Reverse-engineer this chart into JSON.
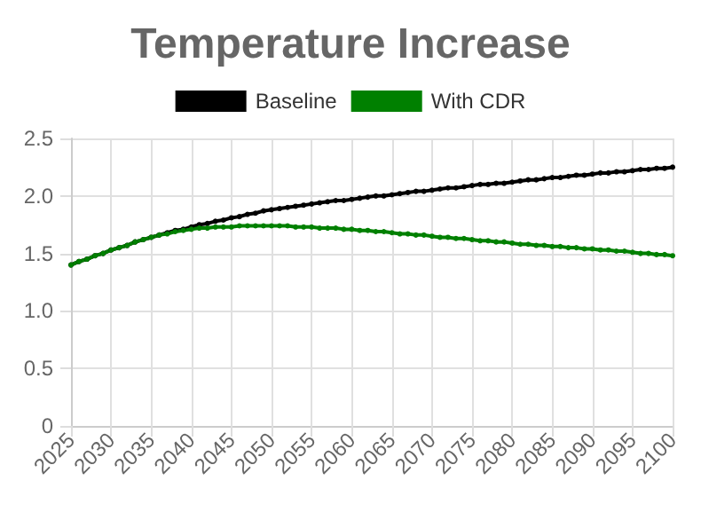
{
  "chart_data": {
    "type": "line",
    "title": "Temperature Increase",
    "x": [
      2025,
      2026,
      2027,
      2028,
      2029,
      2030,
      2031,
      2032,
      2033,
      2034,
      2035,
      2036,
      2037,
      2038,
      2039,
      2040,
      2041,
      2042,
      2043,
      2044,
      2045,
      2046,
      2047,
      2048,
      2049,
      2050,
      2051,
      2052,
      2053,
      2054,
      2055,
      2056,
      2057,
      2058,
      2059,
      2060,
      2061,
      2062,
      2063,
      2064,
      2065,
      2066,
      2067,
      2068,
      2069,
      2070,
      2071,
      2072,
      2073,
      2074,
      2075,
      2076,
      2077,
      2078,
      2079,
      2080,
      2081,
      2082,
      2083,
      2084,
      2085,
      2086,
      2087,
      2088,
      2089,
      2090,
      2091,
      2092,
      2093,
      2094,
      2095,
      2096,
      2097,
      2098,
      2099,
      2100
    ],
    "series": [
      {
        "name": "Baseline",
        "color": "#000000",
        "values": [
          1.4,
          1.43,
          1.45,
          1.48,
          1.5,
          1.53,
          1.55,
          1.57,
          1.6,
          1.62,
          1.64,
          1.66,
          1.68,
          1.7,
          1.71,
          1.73,
          1.75,
          1.76,
          1.78,
          1.79,
          1.81,
          1.82,
          1.84,
          1.85,
          1.87,
          1.88,
          1.89,
          1.9,
          1.91,
          1.92,
          1.93,
          1.94,
          1.95,
          1.96,
          1.96,
          1.97,
          1.98,
          1.99,
          2.0,
          2.0,
          2.01,
          2.02,
          2.03,
          2.04,
          2.04,
          2.05,
          2.06,
          2.07,
          2.07,
          2.08,
          2.09,
          2.1,
          2.1,
          2.11,
          2.11,
          2.12,
          2.13,
          2.14,
          2.14,
          2.15,
          2.16,
          2.16,
          2.17,
          2.18,
          2.18,
          2.19,
          2.2,
          2.2,
          2.21,
          2.21,
          2.22,
          2.23,
          2.23,
          2.24,
          2.24,
          2.25
        ]
      },
      {
        "name": "With CDR",
        "color": "#008000",
        "values": [
          1.4,
          1.43,
          1.45,
          1.48,
          1.5,
          1.53,
          1.55,
          1.57,
          1.6,
          1.62,
          1.64,
          1.66,
          1.67,
          1.69,
          1.7,
          1.71,
          1.72,
          1.72,
          1.73,
          1.73,
          1.73,
          1.74,
          1.74,
          1.74,
          1.74,
          1.74,
          1.74,
          1.74,
          1.73,
          1.73,
          1.73,
          1.72,
          1.72,
          1.72,
          1.71,
          1.71,
          1.7,
          1.7,
          1.69,
          1.69,
          1.68,
          1.67,
          1.67,
          1.66,
          1.66,
          1.65,
          1.64,
          1.64,
          1.63,
          1.63,
          1.62,
          1.61,
          1.61,
          1.6,
          1.6,
          1.59,
          1.58,
          1.58,
          1.57,
          1.57,
          1.56,
          1.56,
          1.55,
          1.55,
          1.54,
          1.54,
          1.53,
          1.53,
          1.52,
          1.52,
          1.51,
          1.5,
          1.5,
          1.49,
          1.49,
          1.48
        ]
      }
    ],
    "xlim": [
      2025,
      2100
    ],
    "xticks": [
      2025,
      2030,
      2035,
      2040,
      2045,
      2050,
      2055,
      2060,
      2065,
      2070,
      2075,
      2080,
      2085,
      2090,
      2095,
      2100
    ],
    "ylim": [
      0,
      2.5
    ],
    "yticks": [
      0,
      0.5,
      {
        "value": 1,
        "label": "1.0"
      },
      1.5,
      {
        "value": 2,
        "label": "2.0"
      },
      2.5
    ],
    "grid": true,
    "legend": "top",
    "marker": "circle",
    "line_style": "solid"
  }
}
